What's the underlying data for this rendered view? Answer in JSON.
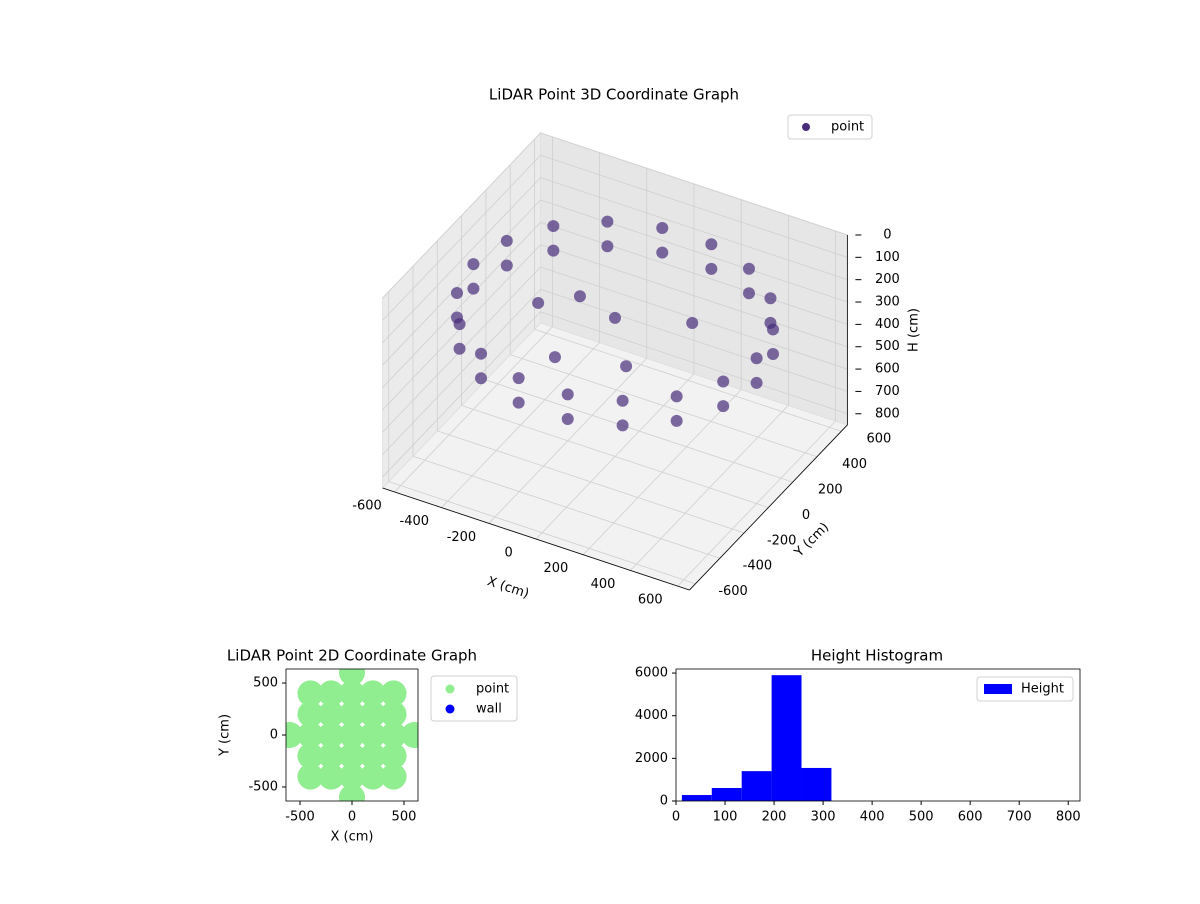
{
  "chart_data": [
    {
      "type": "scatter3d",
      "title": "LiDAR Point 3D Coordinate Graph",
      "xlabel": "X (cm)",
      "ylabel": "Y (cm)",
      "zlabel": "H (cm)",
      "xlim": [
        -650,
        650
      ],
      "ylim": [
        -650,
        650
      ],
      "zlim": [
        0,
        850
      ],
      "zinverted": true,
      "xticks": [
        -600,
        -400,
        -200,
        0,
        200,
        400,
        600
      ],
      "yticks": [
        -600,
        -400,
        -200,
        0,
        200,
        400,
        600
      ],
      "zticks": [
        0,
        100,
        200,
        300,
        400,
        500,
        600,
        700,
        800
      ],
      "legend": "upper right",
      "series": [
        {
          "name": "point",
          "color": "#472c7a",
          "x": [
            600,
            564,
            460,
            300,
            104,
            -104,
            -300,
            -460,
            -564,
            -600,
            -564,
            -460,
            -300,
            -104,
            104,
            300,
            460,
            564,
            600,
            564,
            460,
            300,
            104,
            -104,
            -300,
            -460,
            -564,
            -600,
            -564,
            -460,
            -300,
            -104,
            104,
            300,
            460,
            564,
            0,
            -200,
            150,
            -100,
            250,
            -300
          ],
          "y": [
            0,
            205,
            386,
            520,
            591,
            591,
            520,
            386,
            205,
            0,
            -205,
            -386,
            -520,
            -591,
            -591,
            -520,
            -386,
            -205,
            0,
            205,
            386,
            520,
            591,
            591,
            520,
            386,
            205,
            0,
            -205,
            -386,
            -520,
            -591,
            -591,
            -520,
            -386,
            -205,
            0,
            100,
            -200,
            -300,
            150,
            -50
          ],
          "z": [
            200,
            200,
            200,
            200,
            200,
            200,
            200,
            200,
            200,
            200,
            200,
            200,
            200,
            200,
            200,
            200,
            200,
            200,
            310,
            310,
            310,
            310,
            310,
            310,
            310,
            310,
            310,
            310,
            310,
            310,
            310,
            310,
            310,
            310,
            310,
            310,
            230,
            260,
            280,
            270,
            250,
            240
          ]
        }
      ]
    },
    {
      "type": "scatter",
      "title": "LiDAR Point 2D Coordinate Graph",
      "xlabel": "X (cm)",
      "ylabel": "Y (cm)",
      "xlim": [
        -635,
        635
      ],
      "ylim": [
        -635,
        635
      ],
      "xticks": [
        -500,
        0,
        500
      ],
      "yticks": [
        -500,
        0,
        500
      ],
      "legend": "outside right",
      "series": [
        {
          "name": "point",
          "color": "#90ee90",
          "x": [
            -600,
            -400,
            -400,
            -400,
            -400,
            -400,
            -200,
            -200,
            -200,
            -200,
            -200,
            0,
            0,
            0,
            0,
            0,
            0,
            0,
            200,
            200,
            200,
            200,
            200,
            400,
            400,
            400,
            400,
            400,
            600
          ],
          "y": [
            0,
            -400,
            -200,
            0,
            200,
            400,
            -400,
            -200,
            0,
            200,
            400,
            -600,
            -400,
            -200,
            0,
            200,
            400,
            600,
            -400,
            -200,
            0,
            200,
            400,
            -400,
            -200,
            0,
            200,
            400,
            0
          ]
        },
        {
          "name": "wall",
          "color": "#0000ff",
          "x": [],
          "y": []
        }
      ]
    },
    {
      "type": "histogram",
      "title": "Height Histogram",
      "name": "Height",
      "color": "#0000ff",
      "legend": "upper right",
      "bins": [
        12,
        73,
        134,
        195,
        256,
        317,
        378,
        439,
        500,
        561,
        622,
        683,
        744,
        805
      ],
      "counts": [
        280,
        610,
        1400,
        5900,
        1550,
        0,
        0,
        0,
        0,
        0,
        0,
        0,
        0
      ],
      "xlim": [
        0,
        824
      ],
      "ylim": [
        0,
        6190
      ],
      "xticks": [
        0,
        100,
        200,
        300,
        400,
        500,
        600,
        700,
        800
      ],
      "yticks": [
        0,
        2000,
        4000,
        6000
      ]
    }
  ]
}
